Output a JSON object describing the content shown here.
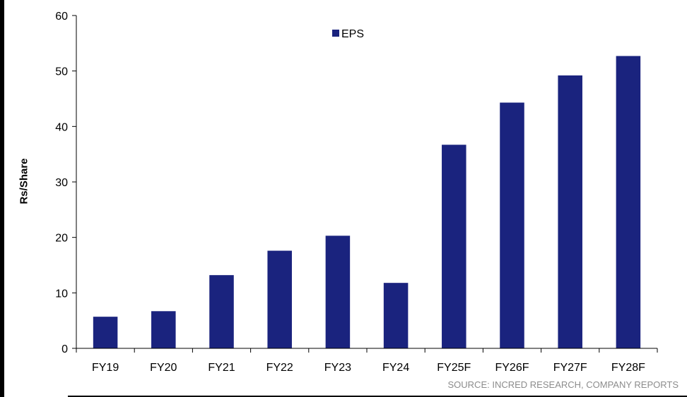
{
  "chart_data": {
    "type": "bar",
    "ylabel": "Rs/Share",
    "ylim": [
      0,
      60
    ],
    "yticks": [
      0,
      10,
      20,
      30,
      40,
      50,
      60
    ],
    "categories": [
      "FY19",
      "FY20",
      "FY21",
      "FY22",
      "FY23",
      "FY24",
      "FY25F",
      "FY26F",
      "FY27F",
      "FY28F"
    ],
    "series": [
      {
        "name": "EPS",
        "values": [
          5.7,
          6.7,
          13.2,
          17.6,
          20.3,
          11.8,
          36.7,
          44.3,
          49.2,
          52.7
        ],
        "color": "#1a237e"
      }
    ],
    "legend_position": "top-center",
    "grid": false
  },
  "source": "SOURCE: INCRED RESEARCH, COMPANY REPORTS"
}
